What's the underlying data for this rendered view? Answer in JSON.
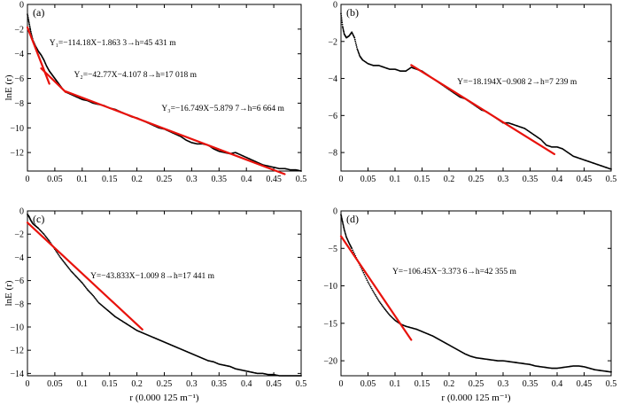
{
  "chart_data": [
    {
      "type": "scatter",
      "panel_label": "(a)",
      "xlabel": "",
      "ylabel": "lnE (r)",
      "xlim": [
        0,
        0.5
      ],
      "ylim": [
        -13.5,
        0
      ],
      "xticks": [
        "0",
        "0.05",
        "0.1",
        "0.15",
        "0.2",
        "0.25",
        "0.3",
        "0.35",
        "0.4",
        "0.45",
        "0.5"
      ],
      "yticks": [
        "0",
        "-2",
        "-4",
        "-6",
        "-8",
        "-10",
        "-12"
      ],
      "ytick_values": [
        0,
        -2,
        -4,
        -6,
        -8,
        -10,
        -12
      ],
      "grid": false,
      "data_points": [
        [
          0.0,
          -0.8
        ],
        [
          0.003,
          -1.5
        ],
        [
          0.006,
          -2.2
        ],
        [
          0.01,
          -2.9
        ],
        [
          0.015,
          -3.4
        ],
        [
          0.02,
          -3.8
        ],
        [
          0.025,
          -4.1
        ],
        [
          0.03,
          -4.5
        ],
        [
          0.035,
          -5.0
        ],
        [
          0.04,
          -5.4
        ],
        [
          0.045,
          -5.7
        ],
        [
          0.05,
          -6.0
        ],
        [
          0.055,
          -6.3
        ],
        [
          0.06,
          -6.6
        ],
        [
          0.065,
          -6.9
        ],
        [
          0.07,
          -7.1
        ],
        [
          0.08,
          -7.3
        ],
        [
          0.09,
          -7.5
        ],
        [
          0.1,
          -7.7
        ],
        [
          0.11,
          -7.8
        ],
        [
          0.12,
          -8.0
        ],
        [
          0.13,
          -8.1
        ],
        [
          0.14,
          -8.2
        ],
        [
          0.15,
          -8.4
        ],
        [
          0.16,
          -8.5
        ],
        [
          0.17,
          -8.7
        ],
        [
          0.18,
          -8.9
        ],
        [
          0.19,
          -9.1
        ],
        [
          0.2,
          -9.2
        ],
        [
          0.21,
          -9.4
        ],
        [
          0.22,
          -9.6
        ],
        [
          0.23,
          -9.8
        ],
        [
          0.24,
          -10.0
        ],
        [
          0.25,
          -10.1
        ],
        [
          0.26,
          -10.3
        ],
        [
          0.27,
          -10.5
        ],
        [
          0.28,
          -10.7
        ],
        [
          0.29,
          -11.0
        ],
        [
          0.3,
          -11.2
        ],
        [
          0.31,
          -11.3
        ],
        [
          0.32,
          -11.3
        ],
        [
          0.33,
          -11.4
        ],
        [
          0.34,
          -11.7
        ],
        [
          0.35,
          -11.9
        ],
        [
          0.36,
          -12.0
        ],
        [
          0.37,
          -12.1
        ],
        [
          0.38,
          -12.0
        ],
        [
          0.39,
          -12.2
        ],
        [
          0.4,
          -12.4
        ],
        [
          0.41,
          -12.6
        ],
        [
          0.42,
          -12.8
        ],
        [
          0.43,
          -13.0
        ],
        [
          0.44,
          -13.1
        ],
        [
          0.45,
          -13.2
        ],
        [
          0.46,
          -13.3
        ],
        [
          0.47,
          -13.3
        ],
        [
          0.48,
          -13.4
        ],
        [
          0.49,
          -13.4
        ],
        [
          0.5,
          -13.5
        ]
      ],
      "fit_lines": [
        {
          "x": [
            0.0,
            0.04
          ],
          "y": [
            -1.8633,
            -6.4305
          ]
        },
        {
          "x": [
            0.025,
            0.07
          ],
          "y": [
            -5.18,
            -7.1046
          ]
        },
        {
          "x": [
            0.07,
            0.47
          ],
          "y": [
            -7.0521,
            -13.7517
          ]
        }
      ],
      "annotations": [
        {
          "text": "Y₁=−114.18X−1.863 3→h=45 431 m",
          "x": 0.04,
          "y": -3.3
        },
        {
          "text": "Y₂=−42.77X−4.107 8→h=17 018 m",
          "x": 0.085,
          "y": -5.9
        },
        {
          "text": "Y₃=−16.749X−5.879 7→h=6 664 m",
          "x": 0.245,
          "y": -8.6
        }
      ]
    },
    {
      "type": "scatter",
      "panel_label": "(b)",
      "xlabel": "",
      "ylabel": "",
      "xlim": [
        0,
        0.5
      ],
      "ylim": [
        -9,
        0
      ],
      "xticks": [
        "0",
        "0.05",
        "0.1",
        "0.15",
        "0.2",
        "0.25",
        "0.3",
        "0.35",
        "0.4",
        "0.45",
        "0.5"
      ],
      "yticks": [
        "0",
        "-2",
        "-4",
        "-6",
        "-8"
      ],
      "ytick_values": [
        0,
        -2,
        -4,
        -6,
        -8
      ],
      "grid": false,
      "data_points": [
        [
          0.0,
          -0.5
        ],
        [
          0.003,
          -1.2
        ],
        [
          0.006,
          -1.6
        ],
        [
          0.01,
          -1.8
        ],
        [
          0.015,
          -1.7
        ],
        [
          0.02,
          -1.5
        ],
        [
          0.025,
          -1.8
        ],
        [
          0.03,
          -2.4
        ],
        [
          0.035,
          -2.8
        ],
        [
          0.04,
          -3.0
        ],
        [
          0.05,
          -3.2
        ],
        [
          0.06,
          -3.3
        ],
        [
          0.07,
          -3.3
        ],
        [
          0.08,
          -3.4
        ],
        [
          0.09,
          -3.5
        ],
        [
          0.1,
          -3.5
        ],
        [
          0.11,
          -3.6
        ],
        [
          0.12,
          -3.6
        ],
        [
          0.13,
          -3.4
        ],
        [
          0.14,
          -3.5
        ],
        [
          0.15,
          -3.6
        ],
        [
          0.16,
          -3.8
        ],
        [
          0.17,
          -4.0
        ],
        [
          0.18,
          -4.2
        ],
        [
          0.19,
          -4.4
        ],
        [
          0.2,
          -4.6
        ],
        [
          0.21,
          -4.8
        ],
        [
          0.22,
          -5.0
        ],
        [
          0.23,
          -5.1
        ],
        [
          0.24,
          -5.3
        ],
        [
          0.25,
          -5.5
        ],
        [
          0.26,
          -5.7
        ],
        [
          0.27,
          -5.8
        ],
        [
          0.28,
          -6.0
        ],
        [
          0.29,
          -6.2
        ],
        [
          0.3,
          -6.4
        ],
        [
          0.31,
          -6.4
        ],
        [
          0.32,
          -6.5
        ],
        [
          0.33,
          -6.6
        ],
        [
          0.34,
          -6.7
        ],
        [
          0.35,
          -6.9
        ],
        [
          0.36,
          -7.1
        ],
        [
          0.37,
          -7.3
        ],
        [
          0.38,
          -7.6
        ],
        [
          0.39,
          -7.7
        ],
        [
          0.4,
          -7.7
        ],
        [
          0.41,
          -7.8
        ],
        [
          0.42,
          -8.0
        ],
        [
          0.43,
          -8.2
        ],
        [
          0.44,
          -8.3
        ],
        [
          0.45,
          -8.4
        ],
        [
          0.46,
          -8.5
        ],
        [
          0.47,
          -8.6
        ],
        [
          0.48,
          -8.7
        ],
        [
          0.49,
          -8.8
        ],
        [
          0.5,
          -8.9
        ]
      ],
      "fit_lines": [
        {
          "x": [
            0.13,
            0.395
          ],
          "y": [
            -3.2744,
            -8.0889
          ]
        }
      ],
      "annotations": [
        {
          "text": "Y=−18.194X−0.908 2→h=7 239 m",
          "x": 0.215,
          "y": -4.3
        }
      ]
    },
    {
      "type": "scatter",
      "panel_label": "(c)",
      "xlabel": "r (0.000 125 m⁻¹)",
      "ylabel": "lnE (r)",
      "xlim": [
        0,
        0.5
      ],
      "ylim": [
        -14.2,
        0
      ],
      "xticks": [
        "0",
        "0.05",
        "0.1",
        "0.15",
        "0.2",
        "0.25",
        "0.3",
        "0.35",
        "0.4",
        "0.45",
        "0.5"
      ],
      "yticks": [
        "0",
        "-2",
        "-4",
        "-6",
        "-8",
        "-10",
        "-12",
        "-14"
      ],
      "ytick_values": [
        0,
        -2,
        -4,
        -6,
        -8,
        -10,
        -12,
        -14
      ],
      "grid": false,
      "data_points": [
        [
          0.0,
          -0.3
        ],
        [
          0.003,
          -0.5
        ],
        [
          0.006,
          -0.8
        ],
        [
          0.01,
          -1.1
        ],
        [
          0.015,
          -1.3
        ],
        [
          0.02,
          -1.5
        ],
        [
          0.03,
          -2.0
        ],
        [
          0.04,
          -2.6
        ],
        [
          0.05,
          -3.3
        ],
        [
          0.06,
          -4.0
        ],
        [
          0.07,
          -4.6
        ],
        [
          0.08,
          -5.2
        ],
        [
          0.09,
          -5.7
        ],
        [
          0.1,
          -6.2
        ],
        [
          0.11,
          -6.8
        ],
        [
          0.12,
          -7.3
        ],
        [
          0.13,
          -7.9
        ],
        [
          0.14,
          -8.3
        ],
        [
          0.15,
          -8.7
        ],
        [
          0.16,
          -9.1
        ],
        [
          0.17,
          -9.4
        ],
        [
          0.18,
          -9.7
        ],
        [
          0.19,
          -10.0
        ],
        [
          0.2,
          -10.3
        ],
        [
          0.21,
          -10.5
        ],
        [
          0.22,
          -10.7
        ],
        [
          0.23,
          -10.9
        ],
        [
          0.24,
          -11.1
        ],
        [
          0.25,
          -11.3
        ],
        [
          0.26,
          -11.5
        ],
        [
          0.27,
          -11.7
        ],
        [
          0.28,
          -11.9
        ],
        [
          0.29,
          -12.1
        ],
        [
          0.3,
          -12.3
        ],
        [
          0.31,
          -12.5
        ],
        [
          0.32,
          -12.7
        ],
        [
          0.33,
          -12.9
        ],
        [
          0.34,
          -13.0
        ],
        [
          0.35,
          -13.2
        ],
        [
          0.36,
          -13.3
        ],
        [
          0.37,
          -13.4
        ],
        [
          0.38,
          -13.6
        ],
        [
          0.39,
          -13.7
        ],
        [
          0.4,
          -13.8
        ],
        [
          0.41,
          -13.9
        ],
        [
          0.42,
          -14.0
        ],
        [
          0.43,
          -14.0
        ],
        [
          0.44,
          -14.1
        ],
        [
          0.45,
          -14.1
        ],
        [
          0.46,
          -14.2
        ],
        [
          0.47,
          -14.2
        ],
        [
          0.48,
          -14.2
        ],
        [
          0.49,
          -14.2
        ],
        [
          0.5,
          -14.2
        ]
      ],
      "fit_lines": [
        {
          "x": [
            0.0,
            0.21
          ],
          "y": [
            -1.0098,
            -10.2147
          ]
        }
      ],
      "annotations": [
        {
          "text": "Y=−43.833X−1.009 8→h=17 441 m",
          "x": 0.115,
          "y": -5.8
        }
      ]
    },
    {
      "type": "scatter",
      "panel_label": "(d)",
      "xlabel": "r (0.000 125 m⁻¹)",
      "ylabel": "",
      "xlim": [
        0,
        0.5
      ],
      "ylim": [
        -22,
        0
      ],
      "xticks": [
        "0",
        "0.05",
        "0.1",
        "0.15",
        "0.2",
        "0.25",
        "0.3",
        "0.35",
        "0.4",
        "0.45",
        "0.5"
      ],
      "yticks": [
        "0",
        "-5",
        "-10",
        "-15",
        "-20"
      ],
      "ytick_values": [
        0,
        -5,
        -10,
        -15,
        -20
      ],
      "grid": false,
      "data_points": [
        [
          0.0,
          -0.5
        ],
        [
          0.003,
          -1.5
        ],
        [
          0.006,
          -2.5
        ],
        [
          0.01,
          -3.5
        ],
        [
          0.015,
          -4.3
        ],
        [
          0.02,
          -5.0
        ],
        [
          0.03,
          -6.5
        ],
        [
          0.04,
          -8.0
        ],
        [
          0.05,
          -9.5
        ],
        [
          0.06,
          -10.8
        ],
        [
          0.07,
          -12.0
        ],
        [
          0.08,
          -13.0
        ],
        [
          0.09,
          -13.9
        ],
        [
          0.1,
          -14.6
        ],
        [
          0.11,
          -15.1
        ],
        [
          0.12,
          -15.4
        ],
        [
          0.13,
          -15.6
        ],
        [
          0.14,
          -15.8
        ],
        [
          0.15,
          -16.1
        ],
        [
          0.16,
          -16.4
        ],
        [
          0.17,
          -16.7
        ],
        [
          0.18,
          -17.1
        ],
        [
          0.19,
          -17.5
        ],
        [
          0.2,
          -17.9
        ],
        [
          0.21,
          -18.3
        ],
        [
          0.22,
          -18.7
        ],
        [
          0.23,
          -19.1
        ],
        [
          0.24,
          -19.4
        ],
        [
          0.25,
          -19.6
        ],
        [
          0.26,
          -19.7
        ],
        [
          0.27,
          -19.8
        ],
        [
          0.28,
          -19.9
        ],
        [
          0.29,
          -20.0
        ],
        [
          0.3,
          -20.0
        ],
        [
          0.31,
          -20.1
        ],
        [
          0.32,
          -20.2
        ],
        [
          0.33,
          -20.3
        ],
        [
          0.34,
          -20.4
        ],
        [
          0.35,
          -20.5
        ],
        [
          0.36,
          -20.7
        ],
        [
          0.37,
          -20.8
        ],
        [
          0.38,
          -20.9
        ],
        [
          0.39,
          -21.0
        ],
        [
          0.4,
          -21.0
        ],
        [
          0.41,
          -20.9
        ],
        [
          0.42,
          -20.8
        ],
        [
          0.43,
          -20.7
        ],
        [
          0.44,
          -20.7
        ],
        [
          0.45,
          -20.8
        ],
        [
          0.46,
          -21.0
        ],
        [
          0.47,
          -21.2
        ],
        [
          0.48,
          -21.3
        ],
        [
          0.49,
          -21.4
        ],
        [
          0.5,
          -21.5
        ]
      ],
      "fit_lines": [
        {
          "x": [
            0.0,
            0.13
          ],
          "y": [
            -3.3736,
            -17.2121
          ]
        }
      ],
      "annotations": [
        {
          "text": "Y=−106.45X−3.373 6→h=42 355 m",
          "x": 0.095,
          "y": -8.4
        }
      ]
    }
  ]
}
